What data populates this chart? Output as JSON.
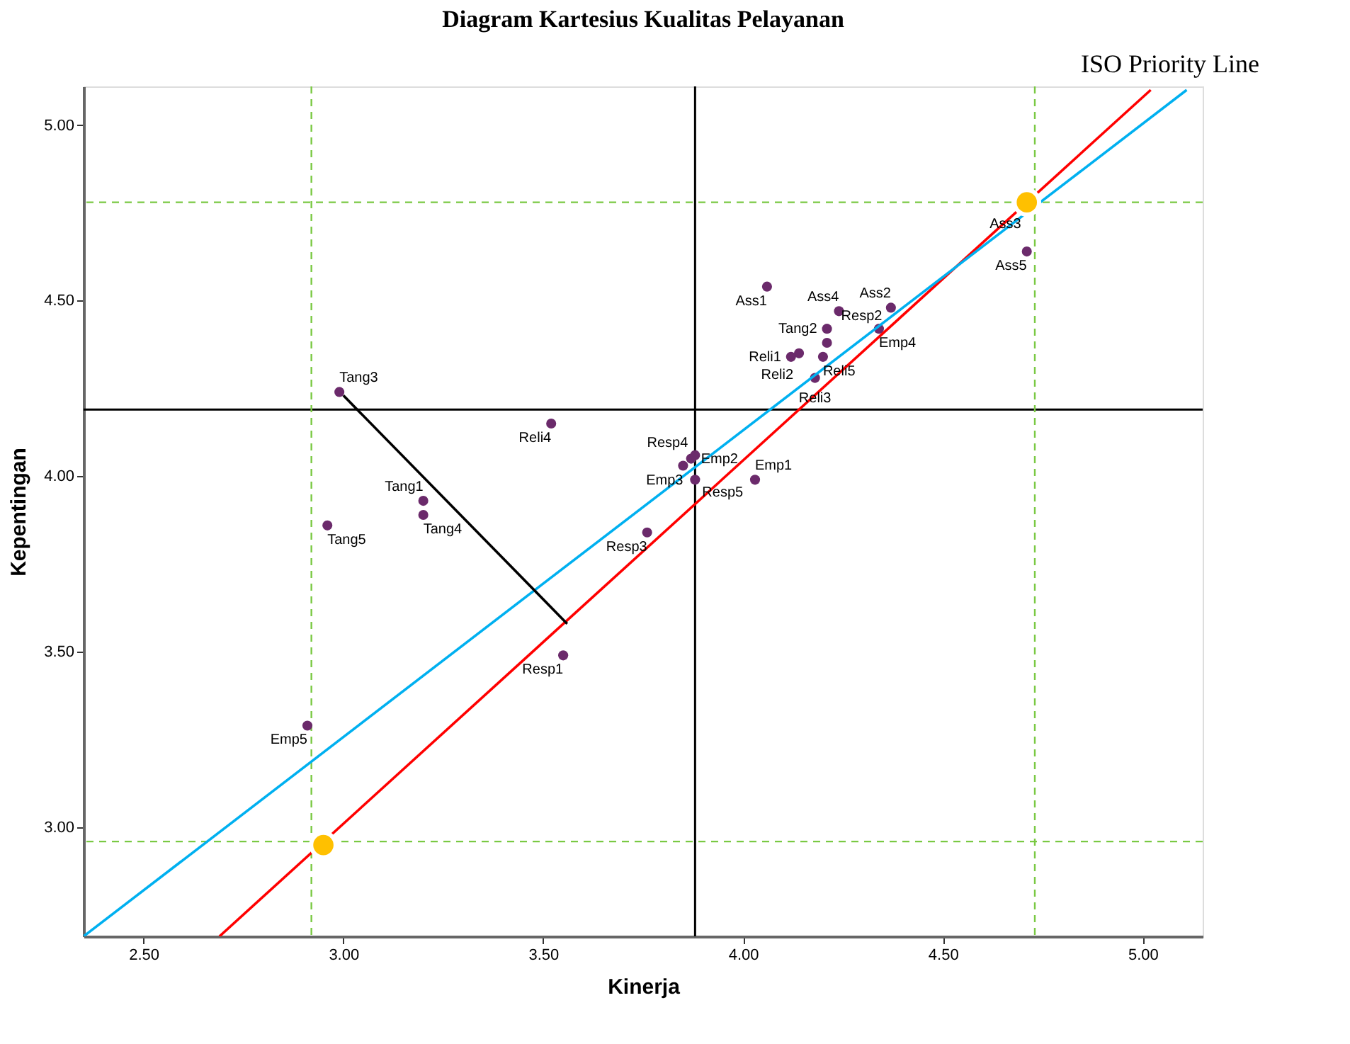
{
  "chart_data": {
    "type": "scatter",
    "title": "Diagram Kartesius Kualitas Pelayanan",
    "xlabel": "Kinerja",
    "ylabel": "Kepentingan",
    "xlim": [
      2.35,
      5.15
    ],
    "ylim": [
      2.69,
      5.11
    ],
    "xticks": [
      {
        "value": 2.5,
        "label": "2.50"
      },
      {
        "value": 3.0,
        "label": "3.00"
      },
      {
        "value": 3.5,
        "label": "3.50"
      },
      {
        "value": 4.0,
        "label": "4.00"
      },
      {
        "value": 4.5,
        "label": "4.50"
      },
      {
        "value": 5.0,
        "label": "5.00"
      }
    ],
    "yticks": [
      {
        "value": 3.0,
        "label": "3.00"
      },
      {
        "value": 3.5,
        "label": "3.50"
      },
      {
        "value": 4.0,
        "label": "4.00"
      },
      {
        "value": 4.5,
        "label": "4.50"
      },
      {
        "value": 5.0,
        "label": "5.00"
      }
    ],
    "grid": false,
    "series": [
      {
        "color": "#6b2a6b",
        "marker": "circle",
        "x": [
          2.99,
          3.52,
          3.87,
          3.85,
          3.88,
          3.88,
          4.03,
          3.76,
          3.55,
          2.96,
          3.2,
          3.2,
          2.91,
          4.06,
          4.24,
          4.37,
          4.21,
          4.34,
          4.14,
          4.2,
          4.21,
          4.12,
          4.18,
          4.71
        ],
        "values": [
          4.24,
          4.15,
          4.05,
          4.03,
          4.06,
          3.99,
          3.99,
          3.84,
          3.49,
          3.86,
          3.93,
          3.89,
          3.29,
          4.54,
          4.47,
          4.48,
          4.42,
          4.42,
          4.35,
          4.34,
          4.38,
          4.34,
          4.28,
          4.64
        ],
        "value_labels": [
          "Tang3",
          "Reli4",
          "Emp2",
          "Emp3",
          "Resp4",
          "Resp5",
          "Emp1",
          "Resp3",
          "Resp1",
          "Tang5",
          "Tang1",
          "Tang4",
          "Emp5",
          "Ass1",
          "Ass4",
          "Ass2",
          "Tang2",
          "Emp4",
          "Reli2",
          "Reli5",
          "Resp2",
          "Reli1",
          "Reli3",
          "Ass5"
        ]
      },
      {
        "type": "line",
        "marker": "none",
        "color": "#ff0000",
        "x": [
          2.69,
          5.02
        ],
        "values": [
          2.69,
          5.1
        ]
      },
      {
        "type": "line",
        "marker": "none",
        "color": "#00b0f0",
        "x": [
          2.35,
          5.11
        ],
        "values": [
          2.69,
          5.1
        ]
      },
      {
        "type": "line",
        "marker": "none",
        "color": "#000000",
        "x": [
          3.0,
          3.56
        ],
        "values": [
          4.23,
          3.58
        ]
      },
      {
        "color": "#ffc000",
        "marker": "circle",
        "x": [
          2.95,
          4.71
        ],
        "values": [
          2.95,
          4.78
        ]
      }
    ],
    "ref_lines": [
      {
        "axis": "x",
        "value": 3.88,
        "color": "#000000",
        "line_style": "solid"
      },
      {
        "axis": "y",
        "value": 4.19,
        "color": "#000000",
        "line_style": "solid"
      },
      {
        "axis": "y",
        "value": 4.78,
        "color": "#7ac943",
        "line_style": "dashed"
      },
      {
        "axis": "y",
        "value": 2.96,
        "color": "#7ac943",
        "line_style": "dashed"
      },
      {
        "axis": "x",
        "value": 2.92,
        "color": "#7ac943",
        "line_style": "dashed"
      },
      {
        "axis": "x",
        "value": 4.73,
        "color": "#7ac943",
        "line_style": "dashed"
      }
    ],
    "annotations": [
      "ISO Priority Line",
      {
        "text": "Ass3",
        "x": 4.71,
        "y": 4.78
      }
    ]
  }
}
